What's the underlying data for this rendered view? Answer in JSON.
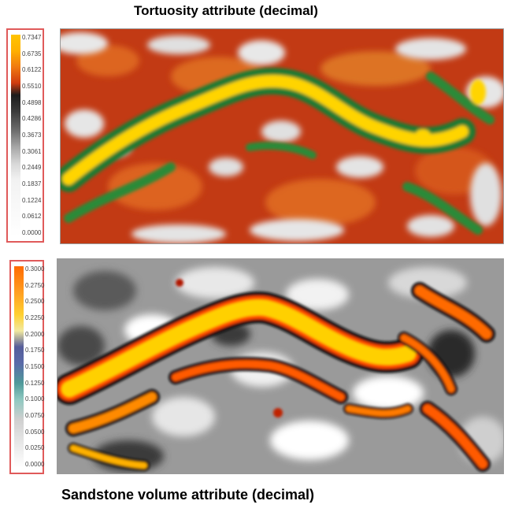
{
  "top_panel": {
    "title": "Tortuosity attribute (decimal)",
    "legend_ticks": [
      "0.7347",
      "0.6735",
      "0.6122",
      "0.5510",
      "0.4898",
      "0.4286",
      "0.3673",
      "0.3061",
      "0.2449",
      "0.1837",
      "0.1224",
      "0.0612",
      "0.0000"
    ]
  },
  "bottom_panel": {
    "title": "Sandstone volume attribute (decimal)",
    "legend_ticks": [
      "0.3000",
      "0.2750",
      "0.2500",
      "0.2250",
      "0.2000",
      "0.1750",
      "0.1500",
      "0.1250",
      "0.1000",
      "0.0750",
      "0.0500",
      "0.0250",
      "0.0000"
    ]
  },
  "colors": {
    "legend_border": "#e05a5a",
    "tortuosity_high": "#ffd200",
    "tortuosity_green": "#2e8b3a",
    "tortuosity_mid": "#d8501a",
    "tortuosity_low": "#e0e0e0",
    "sandstone_high": "#ffd000",
    "sandstone_orange": "#ff6a00",
    "sandstone_black": "#151515"
  }
}
